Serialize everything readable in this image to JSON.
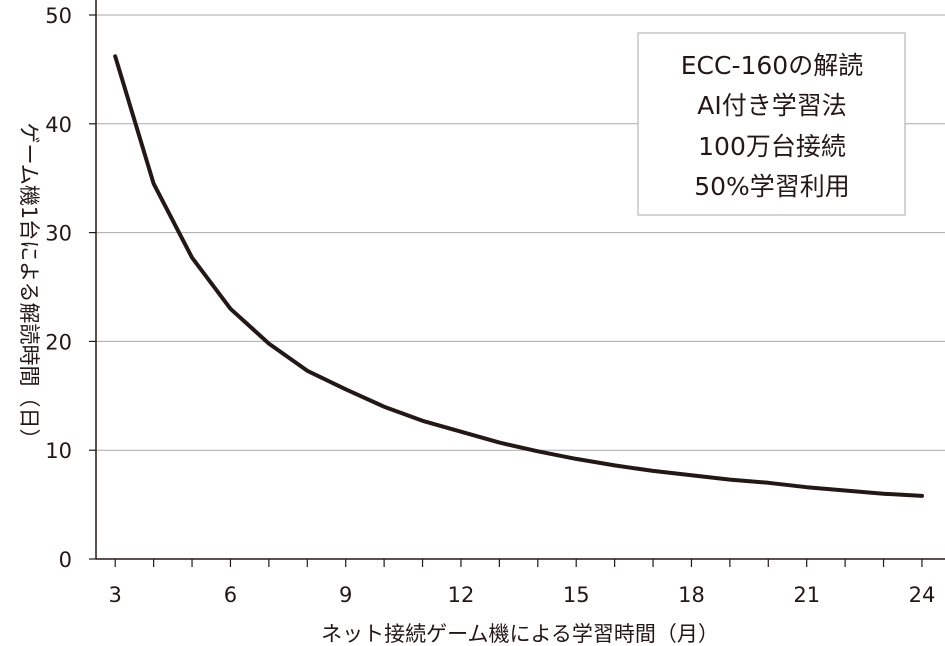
{
  "chart_data": {
    "type": "line",
    "title": "",
    "xlabel": "ネット接続ゲーム機による学習時間（月）",
    "ylabel": "ゲーム機1台による解読時間（日）",
    "xlim": [
      2.5,
      24.6
    ],
    "ylim": [
      0,
      50
    ],
    "x_ticks": [
      3,
      6,
      9,
      12,
      15,
      18,
      21,
      24
    ],
    "x_tick_labels": [
      "3",
      "6",
      "9",
      "12",
      "15",
      "18",
      "21",
      "24"
    ],
    "x_minor_ticks": [
      3,
      4,
      5,
      6,
      7,
      8,
      9,
      10,
      11,
      12,
      13,
      14,
      15,
      16,
      17,
      18,
      19,
      20,
      21,
      22,
      23,
      24
    ],
    "y_ticks": [
      0,
      10,
      20,
      30,
      40,
      50
    ],
    "y_tick_labels": [
      "0",
      "10",
      "20",
      "30",
      "40",
      "50"
    ],
    "grid": "horizontal",
    "annotation_box": {
      "lines": [
        "ECC-160の解読",
        "AI付き学習法",
        "100万台接続",
        "50%学習利用"
      ],
      "placement": "top-right"
    },
    "series": [
      {
        "x": [
          3,
          4,
          5,
          6,
          7,
          8,
          9,
          10,
          11,
          12,
          13,
          14,
          15,
          16,
          17,
          18,
          19,
          20,
          21,
          22,
          23,
          24
        ],
        "values": [
          46.2,
          34.5,
          27.7,
          23.0,
          19.8,
          17.3,
          15.6,
          14.0,
          12.7,
          11.7,
          10.7,
          9.9,
          9.2,
          8.6,
          8.1,
          7.7,
          7.3,
          7.0,
          6.6,
          6.3,
          6.0,
          5.8
        ]
      }
    ]
  },
  "colors": {
    "line": "#231815",
    "axis": "#231815",
    "grid": "#aaaaaa",
    "legend_border": "#aaaaaa"
  }
}
